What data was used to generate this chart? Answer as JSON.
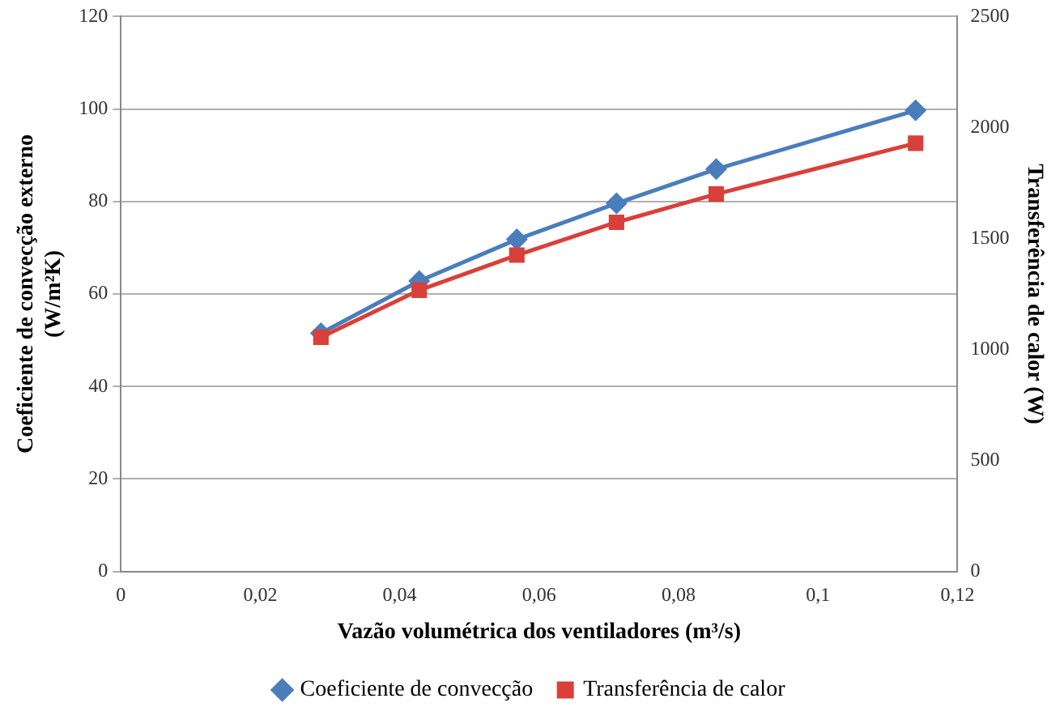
{
  "chart_data": {
    "type": "line",
    "xlabel": "Vazão volumétrica dos ventiladores (m³/s)",
    "ylabel": "Coeficiente de convecção externo (W/m²K)",
    "y2label": "Transferência de calor (W)",
    "x": [
      0.0287,
      0.0428,
      0.0568,
      0.0711,
      0.0854,
      0.114
    ],
    "series": [
      {
        "name": "Coeficiente de convecção",
        "color": "#4a7ebb",
        "marker": "diamond",
        "values": [
          51.5,
          62.8,
          71.8,
          79.6,
          87,
          99.7
        ]
      },
      {
        "name": "Transferência de calor",
        "color": "#d9403a",
        "marker": "square",
        "axis": "y2",
        "values": [
          1055,
          1267,
          1425,
          1573,
          1700,
          1929
        ]
      }
    ],
    "xlim": [
      0,
      0.12
    ],
    "xticks": [
      {
        "value": 0,
        "label": "0"
      },
      {
        "value": 0.02,
        "label": "0,02"
      },
      {
        "value": 0.04,
        "label": "0,04"
      },
      {
        "value": 0.06,
        "label": "0,06"
      },
      {
        "value": 0.08,
        "label": "0,08"
      },
      {
        "value": 0.1,
        "label": "0,1"
      },
      {
        "value": 0.12,
        "label": "0,12"
      }
    ],
    "ylim": [
      0,
      120
    ],
    "yticks": [
      0,
      20,
      40,
      60,
      80,
      100,
      120
    ],
    "y2lim": [
      0,
      2500
    ],
    "y2ticks": [
      0,
      500,
      1000,
      1500,
      2000,
      2500
    ],
    "grid": "y",
    "legend": "bottom",
    "line_style": "solid"
  }
}
